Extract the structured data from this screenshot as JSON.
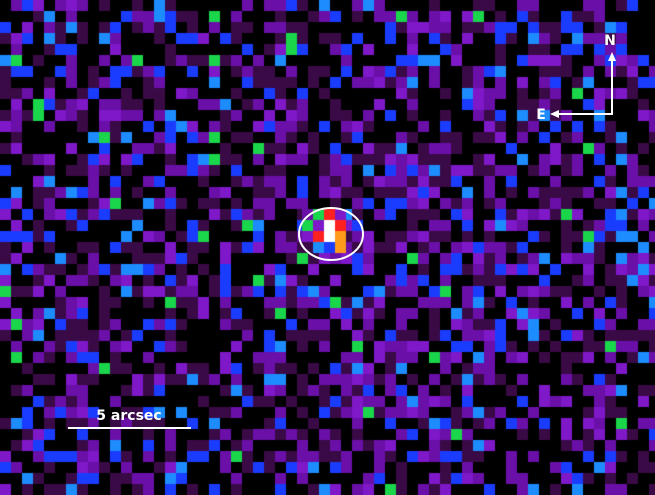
{
  "compass": {
    "north_label": "N",
    "east_label": "E"
  },
  "scale_bar": {
    "label": "5 arcsec"
  },
  "colors": {
    "background": "#000000",
    "dark_purple": "#3a0a46",
    "purple": "#6a0fa8",
    "violet": "#7e18c8",
    "blue": "#1a3cff",
    "sky_blue": "#1d8cff",
    "green": "#19d64a",
    "red": "#ff2020",
    "orange": "#ff9a1a",
    "white": "#ffffff",
    "ellipse_stroke": "#ffffff"
  }
}
